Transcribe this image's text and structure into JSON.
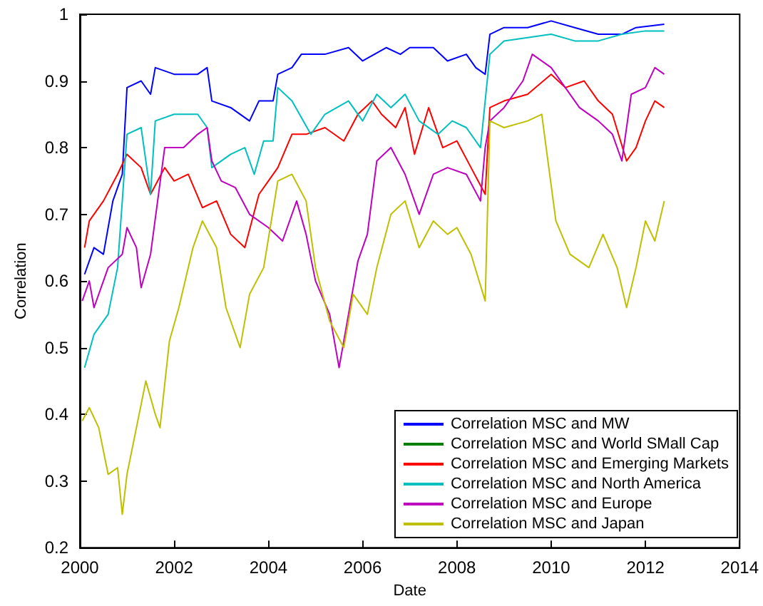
{
  "chart_data": {
    "type": "line",
    "xlabel": "Date",
    "ylabel": "Correlation",
    "xlim": [
      2000,
      2014
    ],
    "xticks": [
      2000,
      2002,
      2004,
      2006,
      2008,
      2010,
      2012,
      2014
    ],
    "ylim": [
      0.2,
      1
    ],
    "yticks": [
      0.2,
      0.3,
      0.4,
      0.5,
      0.6,
      0.7,
      0.8,
      0.9,
      1
    ],
    "grid": false,
    "legend": "bottom right",
    "marker": "none",
    "line_style": "solid",
    "series": [
      {
        "name": "Correlation MSC and MW",
        "color": "#0000ff",
        "x": [
          2000.1,
          2000.3,
          2000.5,
          2000.7,
          2000.9,
          2001.0,
          2001.3,
          2001.5,
          2001.6,
          2002.0,
          2002.5,
          2002.7,
          2002.8,
          2003.2,
          2003.6,
          2003.8,
          2004.1,
          2004.2,
          2004.5,
          2004.7,
          2005.2,
          2005.7,
          2006.0,
          2006.5,
          2006.8,
          2007.0,
          2007.5,
          2007.8,
          2008.2,
          2008.4,
          2008.6,
          2008.7,
          2009.0,
          2009.5,
          2010.0,
          2010.5,
          2011.0,
          2011.5,
          2011.8,
          2012.4
        ],
        "values": [
          0.61,
          0.65,
          0.64,
          0.72,
          0.76,
          0.89,
          0.9,
          0.88,
          0.92,
          0.91,
          0.91,
          0.92,
          0.87,
          0.86,
          0.84,
          0.87,
          0.87,
          0.91,
          0.92,
          0.94,
          0.94,
          0.95,
          0.93,
          0.95,
          0.94,
          0.95,
          0.95,
          0.93,
          0.94,
          0.92,
          0.91,
          0.97,
          0.98,
          0.98,
          0.99,
          0.98,
          0.97,
          0.97,
          0.98,
          0.985
        ]
      },
      {
        "name": "Correlation MSC and World SMall Cap",
        "color": "#008000"
      },
      {
        "name": "Correlation MSC and Emerging Markets",
        "color": "#ff0000",
        "x": [
          2000.1,
          2000.2,
          2000.5,
          2000.8,
          2001.0,
          2001.3,
          2001.5,
          2001.8,
          2002.0,
          2002.3,
          2002.6,
          2002.9,
          2003.2,
          2003.5,
          2003.8,
          2004.0,
          2004.2,
          2004.5,
          2004.8,
          2005.2,
          2005.6,
          2005.9,
          2006.2,
          2006.4,
          2006.7,
          2006.9,
          2007.1,
          2007.4,
          2007.7,
          2008.0,
          2008.3,
          2008.6,
          2008.7,
          2009.0,
          2009.5,
          2010.0,
          2010.3,
          2010.7,
          2011.0,
          2011.3,
          2011.6,
          2011.8,
          2012.0,
          2012.2,
          2012.4
        ],
        "values": [
          0.65,
          0.69,
          0.72,
          0.76,
          0.79,
          0.77,
          0.73,
          0.77,
          0.75,
          0.76,
          0.71,
          0.72,
          0.67,
          0.65,
          0.73,
          0.75,
          0.77,
          0.82,
          0.82,
          0.83,
          0.81,
          0.85,
          0.87,
          0.85,
          0.83,
          0.86,
          0.79,
          0.86,
          0.8,
          0.81,
          0.77,
          0.73,
          0.86,
          0.87,
          0.88,
          0.91,
          0.89,
          0.9,
          0.87,
          0.85,
          0.78,
          0.8,
          0.84,
          0.87,
          0.86
        ]
      },
      {
        "name": "Correlation MSC and North America",
        "color": "#00bfbf",
        "x": [
          2000.1,
          2000.3,
          2000.6,
          2000.8,
          2001.0,
          2001.3,
          2001.5,
          2001.6,
          2002.0,
          2002.5,
          2002.7,
          2002.8,
          2003.2,
          2003.5,
          2003.7,
          2003.9,
          2004.1,
          2004.2,
          2004.5,
          2004.9,
          2005.2,
          2005.7,
          2006.0,
          2006.3,
          2006.6,
          2006.9,
          2007.2,
          2007.6,
          2007.9,
          2008.2,
          2008.5,
          2008.7,
          2009.0,
          2009.5,
          2010.0,
          2010.5,
          2011.0,
          2011.5,
          2012.0,
          2012.4
        ],
        "values": [
          0.47,
          0.52,
          0.55,
          0.62,
          0.82,
          0.83,
          0.73,
          0.84,
          0.85,
          0.85,
          0.83,
          0.77,
          0.79,
          0.8,
          0.76,
          0.81,
          0.81,
          0.89,
          0.87,
          0.82,
          0.85,
          0.87,
          0.84,
          0.88,
          0.86,
          0.88,
          0.84,
          0.82,
          0.84,
          0.83,
          0.8,
          0.94,
          0.96,
          0.965,
          0.97,
          0.96,
          0.96,
          0.97,
          0.975,
          0.975
        ]
      },
      {
        "name": "Correlation MSC and Europe",
        "color": "#bf00bf",
        "x": [
          2000.05,
          2000.2,
          2000.3,
          2000.6,
          2000.9,
          2001.0,
          2001.2,
          2001.3,
          2001.5,
          2001.8,
          2002.2,
          2002.5,
          2002.7,
          2002.8,
          2003.0,
          2003.3,
          2003.6,
          2004.0,
          2004.3,
          2004.6,
          2004.8,
          2005.0,
          2005.3,
          2005.5,
          2005.7,
          2005.9,
          2006.1,
          2006.3,
          2006.6,
          2006.9,
          2007.2,
          2007.5,
          2007.8,
          2008.2,
          2008.5,
          2008.6,
          2008.7,
          2009.0,
          2009.4,
          2009.6,
          2010.0,
          2010.3,
          2010.6,
          2011.0,
          2011.3,
          2011.5,
          2011.7,
          2012.0,
          2012.2,
          2012.4
        ],
        "values": [
          0.57,
          0.6,
          0.56,
          0.62,
          0.64,
          0.68,
          0.65,
          0.59,
          0.64,
          0.8,
          0.8,
          0.82,
          0.83,
          0.78,
          0.75,
          0.74,
          0.7,
          0.68,
          0.66,
          0.72,
          0.67,
          0.6,
          0.55,
          0.47,
          0.55,
          0.63,
          0.67,
          0.78,
          0.8,
          0.76,
          0.7,
          0.76,
          0.77,
          0.76,
          0.72,
          0.8,
          0.84,
          0.86,
          0.9,
          0.94,
          0.92,
          0.89,
          0.86,
          0.84,
          0.82,
          0.78,
          0.88,
          0.89,
          0.92,
          0.91
        ]
      },
      {
        "name": "Correlation MSC and Japan",
        "color": "#bfbf00",
        "x": [
          2000.05,
          2000.2,
          2000.4,
          2000.6,
          2000.8,
          2000.9,
          2001.0,
          2001.2,
          2001.4,
          2001.6,
          2001.7,
          2001.9,
          2002.1,
          2002.4,
          2002.6,
          2002.9,
          2003.1,
          2003.4,
          2003.6,
          2003.9,
          2004.2,
          2004.5,
          2004.8,
          2005.0,
          2005.3,
          2005.6,
          2005.8,
          2006.1,
          2006.3,
          2006.6,
          2006.9,
          2007.2,
          2007.5,
          2007.8,
          2008.0,
          2008.3,
          2008.6,
          2008.7,
          2009.0,
          2009.5,
          2009.8,
          2010.1,
          2010.4,
          2010.8,
          2011.1,
          2011.4,
          2011.6,
          2011.8,
          2012.0,
          2012.2,
          2012.4
        ],
        "values": [
          0.39,
          0.41,
          0.38,
          0.31,
          0.32,
          0.25,
          0.31,
          0.38,
          0.45,
          0.4,
          0.38,
          0.51,
          0.56,
          0.65,
          0.69,
          0.65,
          0.56,
          0.5,
          0.58,
          0.62,
          0.75,
          0.76,
          0.72,
          0.62,
          0.54,
          0.5,
          0.58,
          0.55,
          0.62,
          0.7,
          0.72,
          0.65,
          0.69,
          0.67,
          0.68,
          0.64,
          0.57,
          0.84,
          0.83,
          0.84,
          0.85,
          0.69,
          0.64,
          0.62,
          0.67,
          0.62,
          0.56,
          0.62,
          0.69,
          0.66,
          0.72
        ]
      }
    ]
  }
}
